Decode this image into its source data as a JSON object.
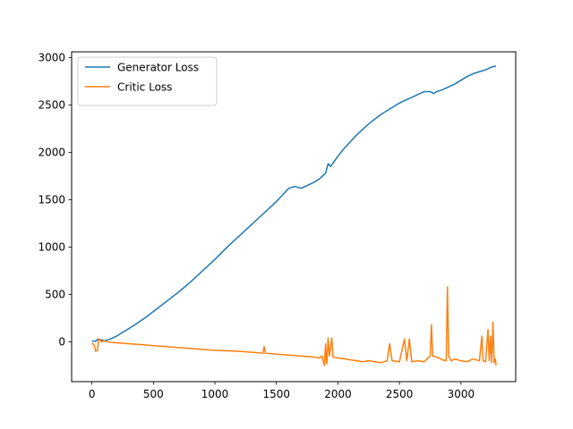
{
  "chart_data": {
    "type": "line",
    "title": "",
    "xlabel": "",
    "ylabel": "",
    "xlim": [
      -165,
      3445
    ],
    "ylim": [
      -420,
      3060
    ],
    "x_ticks": [
      0,
      500,
      1000,
      1500,
      2000,
      2500,
      3000
    ],
    "y_ticks": [
      0,
      500,
      1000,
      1500,
      2000,
      2500,
      3000
    ],
    "legend_position": "upper-left",
    "grid": false,
    "series": [
      {
        "name": "Generator Loss",
        "color": "#1f77b4",
        "points": [
          [
            0,
            10
          ],
          [
            30,
            5
          ],
          [
            50,
            30
          ],
          [
            80,
            20
          ],
          [
            100,
            10
          ],
          [
            150,
            30
          ],
          [
            200,
            60
          ],
          [
            250,
            100
          ],
          [
            300,
            140
          ],
          [
            350,
            180
          ],
          [
            400,
            225
          ],
          [
            450,
            270
          ],
          [
            500,
            320
          ],
          [
            550,
            370
          ],
          [
            600,
            420
          ],
          [
            650,
            470
          ],
          [
            700,
            520
          ],
          [
            750,
            575
          ],
          [
            800,
            630
          ],
          [
            850,
            690
          ],
          [
            900,
            750
          ],
          [
            950,
            810
          ],
          [
            1000,
            870
          ],
          [
            1050,
            935
          ],
          [
            1100,
            1000
          ],
          [
            1150,
            1060
          ],
          [
            1200,
            1120
          ],
          [
            1250,
            1180
          ],
          [
            1300,
            1240
          ],
          [
            1350,
            1300
          ],
          [
            1400,
            1360
          ],
          [
            1450,
            1420
          ],
          [
            1500,
            1480
          ],
          [
            1550,
            1550
          ],
          [
            1600,
            1620
          ],
          [
            1650,
            1640
          ],
          [
            1700,
            1620
          ],
          [
            1750,
            1650
          ],
          [
            1800,
            1680
          ],
          [
            1850,
            1720
          ],
          [
            1900,
            1780
          ],
          [
            1920,
            1880
          ],
          [
            1940,
            1850
          ],
          [
            2000,
            1960
          ],
          [
            2050,
            2040
          ],
          [
            2100,
            2110
          ],
          [
            2150,
            2180
          ],
          [
            2200,
            2240
          ],
          [
            2250,
            2300
          ],
          [
            2300,
            2350
          ],
          [
            2350,
            2400
          ],
          [
            2400,
            2440
          ],
          [
            2450,
            2480
          ],
          [
            2500,
            2520
          ],
          [
            2550,
            2550
          ],
          [
            2600,
            2580
          ],
          [
            2650,
            2610
          ],
          [
            2700,
            2640
          ],
          [
            2750,
            2640
          ],
          [
            2780,
            2620
          ],
          [
            2800,
            2640
          ],
          [
            2850,
            2660
          ],
          [
            2900,
            2690
          ],
          [
            2950,
            2720
          ],
          [
            3000,
            2760
          ],
          [
            3050,
            2800
          ],
          [
            3100,
            2830
          ],
          [
            3150,
            2850
          ],
          [
            3200,
            2870
          ],
          [
            3250,
            2900
          ],
          [
            3285,
            2910
          ]
        ]
      },
      {
        "name": "Critic Loss",
        "color": "#ff7f0e",
        "points": [
          [
            0,
            -10
          ],
          [
            20,
            -40
          ],
          [
            30,
            -100
          ],
          [
            45,
            -90
          ],
          [
            55,
            30
          ],
          [
            65,
            20
          ],
          [
            80,
            0
          ],
          [
            100,
            10
          ],
          [
            130,
            0
          ],
          [
            150,
            -5
          ],
          [
            200,
            -10
          ],
          [
            300,
            -20
          ],
          [
            400,
            -30
          ],
          [
            500,
            -40
          ],
          [
            600,
            -50
          ],
          [
            700,
            -60
          ],
          [
            800,
            -70
          ],
          [
            900,
            -80
          ],
          [
            1000,
            -90
          ],
          [
            1100,
            -95
          ],
          [
            1200,
            -100
          ],
          [
            1300,
            -110
          ],
          [
            1390,
            -120
          ],
          [
            1400,
            -50
          ],
          [
            1410,
            -120
          ],
          [
            1500,
            -130
          ],
          [
            1600,
            -140
          ],
          [
            1700,
            -150
          ],
          [
            1800,
            -160
          ],
          [
            1850,
            -170
          ],
          [
            1870,
            -150
          ],
          [
            1880,
            -200
          ],
          [
            1890,
            -250
          ],
          [
            1895,
            -110
          ],
          [
            1900,
            -20
          ],
          [
            1905,
            -200
          ],
          [
            1910,
            -230
          ],
          [
            1920,
            40
          ],
          [
            1930,
            -150
          ],
          [
            1950,
            40
          ],
          [
            1960,
            -160
          ],
          [
            2000,
            -170
          ],
          [
            2050,
            -180
          ],
          [
            2100,
            -190
          ],
          [
            2150,
            -200
          ],
          [
            2200,
            -210
          ],
          [
            2250,
            -200
          ],
          [
            2300,
            -210
          ],
          [
            2350,
            -220
          ],
          [
            2400,
            -200
          ],
          [
            2420,
            -20
          ],
          [
            2440,
            -200
          ],
          [
            2500,
            -210
          ],
          [
            2540,
            30
          ],
          [
            2560,
            -200
          ],
          [
            2580,
            30
          ],
          [
            2600,
            -210
          ],
          [
            2650,
            -200
          ],
          [
            2700,
            -210
          ],
          [
            2750,
            -150
          ],
          [
            2760,
            180
          ],
          [
            2770,
            -150
          ],
          [
            2800,
            -160
          ],
          [
            2850,
            -190
          ],
          [
            2880,
            -200
          ],
          [
            2890,
            580
          ],
          [
            2900,
            -150
          ],
          [
            2920,
            -200
          ],
          [
            2950,
            -180
          ],
          [
            3000,
            -200
          ],
          [
            3050,
            -210
          ],
          [
            3100,
            -180
          ],
          [
            3150,
            -200
          ],
          [
            3170,
            60
          ],
          [
            3180,
            -200
          ],
          [
            3200,
            -210
          ],
          [
            3220,
            130
          ],
          [
            3230,
            -200
          ],
          [
            3240,
            60
          ],
          [
            3250,
            -220
          ],
          [
            3260,
            210
          ],
          [
            3270,
            -220
          ],
          [
            3280,
            -180
          ],
          [
            3285,
            -250
          ]
        ]
      }
    ]
  }
}
